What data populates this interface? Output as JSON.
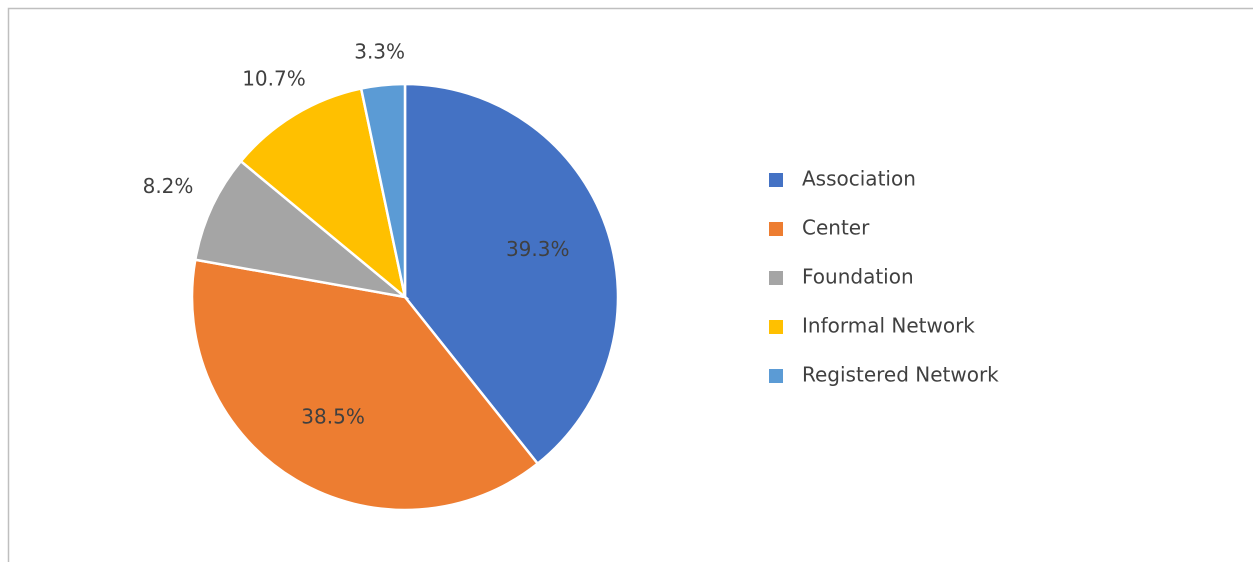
{
  "chart_data": {
    "type": "pie",
    "categories": [
      "Association",
      "Center",
      "Foundation",
      "Informal Network",
      "Registered Network"
    ],
    "values": [
      39.3,
      38.5,
      8.2,
      10.7,
      3.3
    ],
    "value_labels": [
      "39.3%",
      "38.5%",
      "8.2%",
      "10.7%",
      "3.3%"
    ],
    "colors": [
      "#4472c4",
      "#ed7d31",
      "#a5a5a5",
      "#ffc000",
      "#5b9bd5"
    ],
    "legend": "right"
  }
}
